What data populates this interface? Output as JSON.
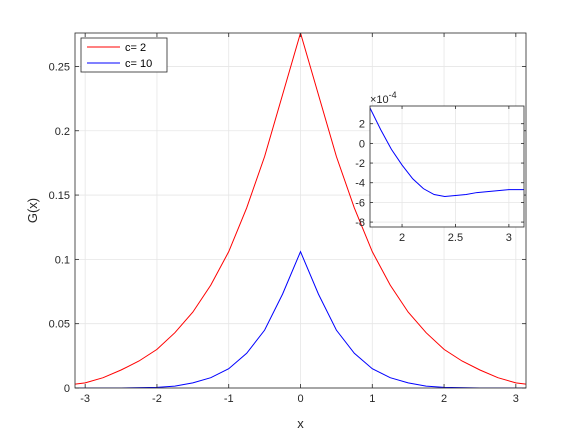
{
  "chart_data": [
    {
      "type": "line",
      "xlabel": "x",
      "ylabel": "G(x)",
      "xlim": [
        -3.1416,
        3.1416
      ],
      "ylim": [
        0,
        0.276
      ],
      "xticks": [
        -3,
        -2,
        -1,
        0,
        1,
        2,
        3
      ],
      "yticks": [
        0,
        0.05,
        0.1,
        0.15,
        0.2,
        0.25
      ],
      "grid": true,
      "legend_position": "top-left",
      "series": [
        {
          "name": "c= 2",
          "color": "#ff0000",
          "x": [
            -3.14,
            -3.0,
            -2.75,
            -2.5,
            -2.25,
            -2.0,
            -1.75,
            -1.5,
            -1.25,
            -1.0,
            -0.75,
            -0.5,
            -0.25,
            0.0,
            0.25,
            0.5,
            0.75,
            1.0,
            1.25,
            1.5,
            1.75,
            2.0,
            2.25,
            2.5,
            2.75,
            3.0,
            3.14
          ],
          "y": [
            0.003,
            0.004,
            0.008,
            0.014,
            0.021,
            0.03,
            0.043,
            0.059,
            0.08,
            0.106,
            0.14,
            0.18,
            0.228,
            0.276,
            0.228,
            0.18,
            0.14,
            0.106,
            0.08,
            0.059,
            0.043,
            0.03,
            0.021,
            0.014,
            0.008,
            0.004,
            0.003
          ]
        },
        {
          "name": "c= 10",
          "color": "#0000ff",
          "x": [
            -3.14,
            -3.0,
            -2.5,
            -2.0,
            -1.75,
            -1.5,
            -1.25,
            -1.0,
            -0.75,
            -0.5,
            -0.25,
            0.0,
            0.25,
            0.5,
            0.75,
            1.0,
            1.25,
            1.5,
            1.75,
            2.0,
            2.5,
            3.0,
            3.14
          ],
          "y": [
            0.0,
            0.0,
            0.0,
            0.0005,
            0.0015,
            0.004,
            0.008,
            0.015,
            0.027,
            0.045,
            0.073,
            0.106,
            0.073,
            0.045,
            0.027,
            0.015,
            0.008,
            0.004,
            0.0015,
            0.0005,
            0.0,
            0.0,
            0.0
          ]
        }
      ]
    },
    {
      "type": "line",
      "xlim": [
        1.7,
        3.1416
      ],
      "ylim": [
        -0.00085,
        0.00038
      ],
      "xticks": [
        2,
        2.5,
        3
      ],
      "yticks": [
        -8,
        -6,
        -4,
        -2,
        0,
        2
      ],
      "ytick_multiplier": "×10",
      "ytick_exponent": "-4",
      "grid": true,
      "series": [
        {
          "color": "#0000ff",
          "x": [
            1.7,
            1.8,
            1.9,
            2.0,
            2.1,
            2.2,
            2.3,
            2.4,
            2.5,
            2.6,
            2.7,
            2.8,
            2.9,
            3.0,
            3.1416
          ],
          "y": [
            0.00036,
            0.00014,
            -6e-05,
            -0.00022,
            -0.00036,
            -0.00046,
            -0.00052,
            -0.00054,
            -0.00053,
            -0.00052,
            -0.0005,
            -0.00049,
            -0.00048,
            -0.00047,
            -0.00047
          ]
        }
      ]
    }
  ]
}
